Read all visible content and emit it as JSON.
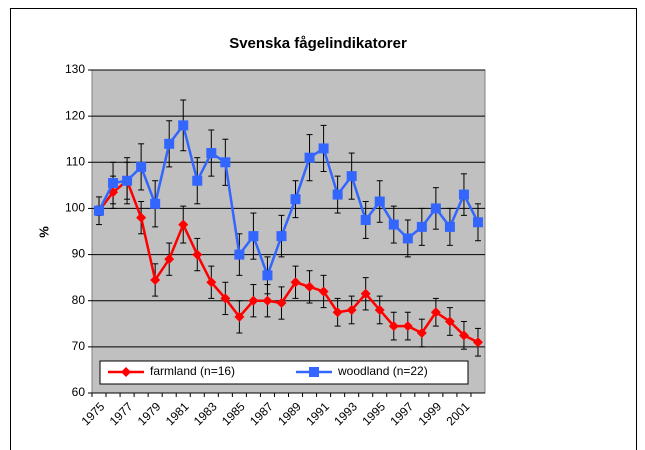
{
  "chart_data": {
    "type": "line",
    "title": "Svenska fågelindikatorer",
    "ylabel": "%",
    "categories": [
      "1975",
      null,
      "1977",
      null,
      "1979",
      null,
      "1981",
      null,
      "1983",
      null,
      "1985",
      null,
      "1987",
      null,
      "1989",
      null,
      "1991",
      null,
      "1993",
      null,
      "1995",
      null,
      "1997",
      null,
      "1999",
      null,
      "2001",
      null
    ],
    "series": [
      {
        "name": "farmland (n=16)",
        "color": "#ff0000",
        "marker": "diamond",
        "values": [
          99.5,
          103.5,
          106,
          98,
          84.5,
          89,
          96.5,
          90,
          84,
          80.5,
          76.5,
          80,
          80,
          79.5,
          84,
          83,
          82,
          77.5,
          78,
          81.5,
          78,
          74.5,
          74.5,
          73,
          77.5,
          75.5,
          72.5,
          71
        ],
        "errors": [
          3,
          3.5,
          4,
          3.5,
          3.5,
          3.5,
          4,
          3.5,
          3.5,
          3.5,
          3.5,
          3.5,
          3.5,
          3.5,
          3.5,
          3.5,
          3.5,
          3,
          3,
          3.5,
          3,
          3,
          3,
          3,
          3,
          3,
          3,
          3
        ]
      },
      {
        "name": "woodland (n=22)",
        "color": "#3366ff",
        "marker": "square",
        "values": [
          99.5,
          105.5,
          106,
          109,
          101,
          114,
          118,
          106,
          112,
          110,
          90,
          94,
          85.5,
          94,
          102,
          111,
          113,
          103,
          107,
          97.5,
          101.5,
          96.5,
          93.5,
          96,
          100,
          96,
          103,
          97
        ],
        "errors": [
          1,
          4.5,
          5,
          5,
          5,
          5,
          5.5,
          5,
          5,
          5,
          4.5,
          5,
          4,
          4.5,
          4,
          5,
          5,
          4,
          5,
          4,
          4.5,
          4,
          4,
          4,
          4.5,
          4,
          4.5,
          4
        ]
      }
    ],
    "ylim": [
      60,
      130
    ],
    "yticks": [
      60,
      70,
      80,
      90,
      100,
      110,
      120,
      130
    ],
    "grid": true,
    "legend": "bottom"
  }
}
